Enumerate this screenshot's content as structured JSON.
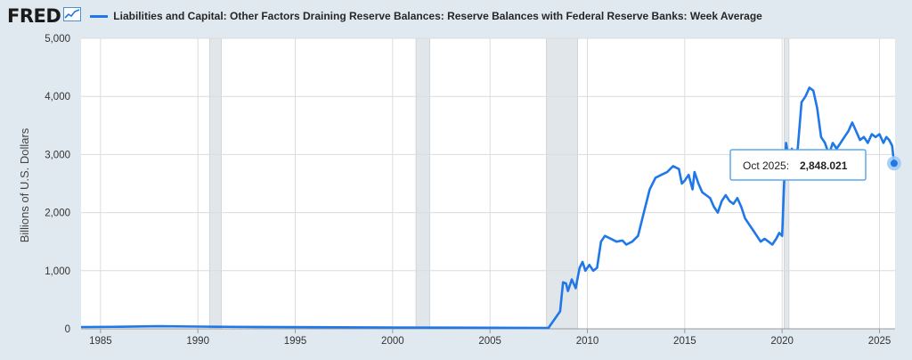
{
  "brand": {
    "name": "FRED",
    "icon": "trend-chart-icon"
  },
  "colors": {
    "series": "#1f77e8",
    "recession": "#e1e6ea",
    "plot_bg": "#ffffff",
    "page_bg": "#e1e9f0"
  },
  "tooltip": {
    "date": "Oct 2025:",
    "value": "2,848.021"
  },
  "chart_data": {
    "type": "line",
    "title": "Liabilities and Capital: Other Factors Draining Reserve Balances: Reserve Balances with Federal Reserve Banks: Week Average",
    "xlabel": "",
    "ylabel": "Billions of U.S. Dollars",
    "xlim": [
      1984.0,
      2025.8
    ],
    "ylim": [
      0,
      5000
    ],
    "x_ticks": [
      1985,
      1990,
      1995,
      2000,
      2005,
      2010,
      2015,
      2020,
      2025
    ],
    "y_ticks": [
      0,
      1000,
      2000,
      3000,
      4000,
      5000
    ],
    "y_tick_labels": [
      "0",
      "1,000",
      "2,000",
      "3,000",
      "4,000",
      "5,000"
    ],
    "recessions": [
      [
        1990.6,
        1991.2
      ],
      [
        2001.2,
        2001.9
      ],
      [
        2007.9,
        2009.5
      ],
      [
        2020.1,
        2020.35
      ]
    ],
    "series": [
      {
        "name": "Reserve Balances with Federal Reserve Banks: Week Average",
        "x": [
          1984.0,
          1986.0,
          1988.0,
          1990.0,
          1991.0,
          1993.0,
          1996.0,
          2000.0,
          2005.0,
          2008.0,
          2008.6,
          2008.75,
          2008.9,
          2009.0,
          2009.2,
          2009.4,
          2009.6,
          2009.75,
          2009.9,
          2010.1,
          2010.3,
          2010.5,
          2010.7,
          2010.9,
          2011.2,
          2011.5,
          2011.8,
          2012.0,
          2012.3,
          2012.6,
          2012.9,
          2013.2,
          2013.5,
          2013.8,
          2014.1,
          2014.4,
          2014.7,
          2014.85,
          2015.0,
          2015.2,
          2015.4,
          2015.5,
          2015.7,
          2015.9,
          2016.1,
          2016.3,
          2016.5,
          2016.7,
          2016.9,
          2017.1,
          2017.3,
          2017.5,
          2017.7,
          2017.9,
          2018.1,
          2018.3,
          2018.6,
          2018.9,
          2019.1,
          2019.3,
          2019.5,
          2019.7,
          2019.85,
          2020.0,
          2020.1,
          2020.2,
          2020.3,
          2020.4,
          2020.5,
          2020.6,
          2020.8,
          2021.0,
          2021.2,
          2021.4,
          2021.6,
          2021.8,
          2022.0,
          2022.2,
          2022.4,
          2022.6,
          2022.8,
          2023.0,
          2023.2,
          2023.4,
          2023.6,
          2023.8,
          2024.0,
          2024.2,
          2024.4,
          2024.6,
          2024.8,
          2025.0,
          2025.2,
          2025.35,
          2025.5,
          2025.65,
          2025.75
        ],
        "values": [
          30,
          35,
          45,
          38,
          35,
          32,
          28,
          22,
          18,
          15,
          300,
          800,
          780,
          650,
          850,
          700,
          1050,
          1150,
          1000,
          1100,
          1000,
          1050,
          1500,
          1600,
          1550,
          1500,
          1520,
          1450,
          1500,
          1600,
          2000,
          2400,
          2600,
          2650,
          2700,
          2800,
          2750,
          2500,
          2550,
          2650,
          2400,
          2700,
          2500,
          2350,
          2300,
          2250,
          2100,
          2000,
          2200,
          2300,
          2200,
          2150,
          2250,
          2100,
          1900,
          1800,
          1650,
          1500,
          1550,
          1500,
          1450,
          1550,
          1650,
          1600,
          2500,
          3200,
          3000,
          2900,
          3100,
          3000,
          3100,
          3900,
          4000,
          4150,
          4100,
          3800,
          3300,
          3200,
          3000,
          3200,
          3100,
          3200,
          3300,
          3400,
          3550,
          3400,
          3250,
          3300,
          3200,
          3350,
          3300,
          3350,
          3200,
          3300,
          3250,
          3150,
          2848
        ]
      }
    ]
  }
}
